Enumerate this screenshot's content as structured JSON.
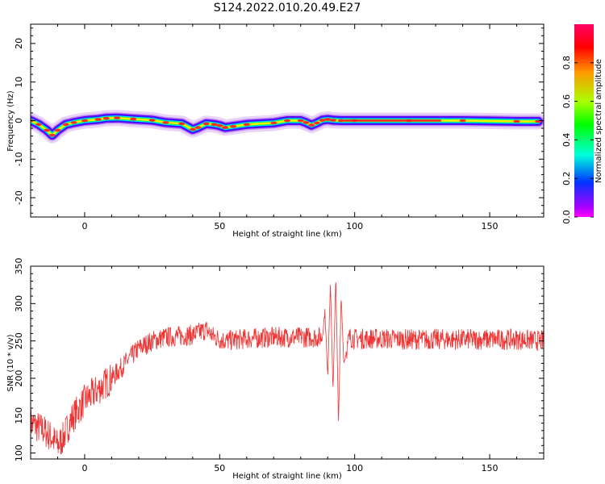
{
  "figure": {
    "title": "S124.2022.010.20.49.E27"
  },
  "chart_data": [
    {
      "type": "heatmap",
      "xlabel": "Height of straight line (km)",
      "ylabel": "Frequency (Hz)",
      "xlim": [
        -20,
        170
      ],
      "ylim": [
        -25,
        25
      ],
      "xticks": [
        0,
        50,
        100,
        150
      ],
      "yticks": [
        -20,
        -10,
        0,
        10,
        20
      ],
      "grid": false,
      "colormap": "gist_rainbow (reversed, magenta at 1.0 to red at 0.0)",
      "colorbar": {
        "label": "Normalized spectral amplitude",
        "range": [
          0.0,
          1.0
        ],
        "ticks": [
          "0.0",
          "0.2",
          "0.4",
          "0.6",
          "0.8"
        ]
      },
      "ridge": {
        "x": [
          -20,
          -17,
          -14,
          -12,
          -10,
          -7,
          -4,
          0,
          5,
          8,
          12,
          18,
          25,
          30,
          36,
          40,
          42,
          45,
          48,
          50,
          52,
          55,
          60,
          70,
          75,
          80,
          82,
          84,
          86,
          88,
          90,
          92,
          95,
          100,
          120,
          140,
          160,
          168
        ],
        "y": [
          0,
          -1,
          -2.5,
          -3.8,
          -2.5,
          -1,
          -0.5,
          0,
          0.3,
          0.6,
          0.7,
          0.4,
          0.1,
          -0.5,
          -0.8,
          -2.3,
          -1.8,
          -0.8,
          -1.0,
          -1.3,
          -1.8,
          -1.5,
          -1.0,
          -0.6,
          0,
          0,
          -0.5,
          -1.2,
          -0.6,
          0.1,
          0.3,
          0.1,
          0,
          0,
          0,
          0,
          -0.2,
          -0.2
        ]
      }
    },
    {
      "type": "line",
      "xlabel": "Height of straight line (km)",
      "ylabel": "SNR (10 * v/v)",
      "xlim": [
        -20,
        170
      ],
      "ylim": [
        92,
        350
      ],
      "xticks": [
        0,
        50,
        100,
        150
      ],
      "yticks": [
        100,
        150,
        200,
        250,
        300,
        350
      ],
      "grid": false,
      "color": "#ee3333",
      "trend": {
        "x": [
          -20,
          -15,
          -12,
          -10,
          -8,
          -5,
          0,
          5,
          10,
          15,
          20,
          25,
          30,
          40,
          45,
          48,
          52,
          60,
          70,
          80,
          88,
          89,
          90,
          91,
          92,
          93,
          94,
          95,
          96,
          98,
          100,
          110,
          120,
          140,
          160,
          170
        ],
        "y": [
          140,
          130,
          120,
          110,
          120,
          145,
          170,
          185,
          200,
          220,
          240,
          250,
          255,
          258,
          265,
          255,
          250,
          253,
          255,
          255,
          255,
          290,
          200,
          330,
          180,
          340,
          140,
          310,
          220,
          255,
          253,
          253,
          252,
          252,
          252,
          250
        ]
      }
    }
  ]
}
